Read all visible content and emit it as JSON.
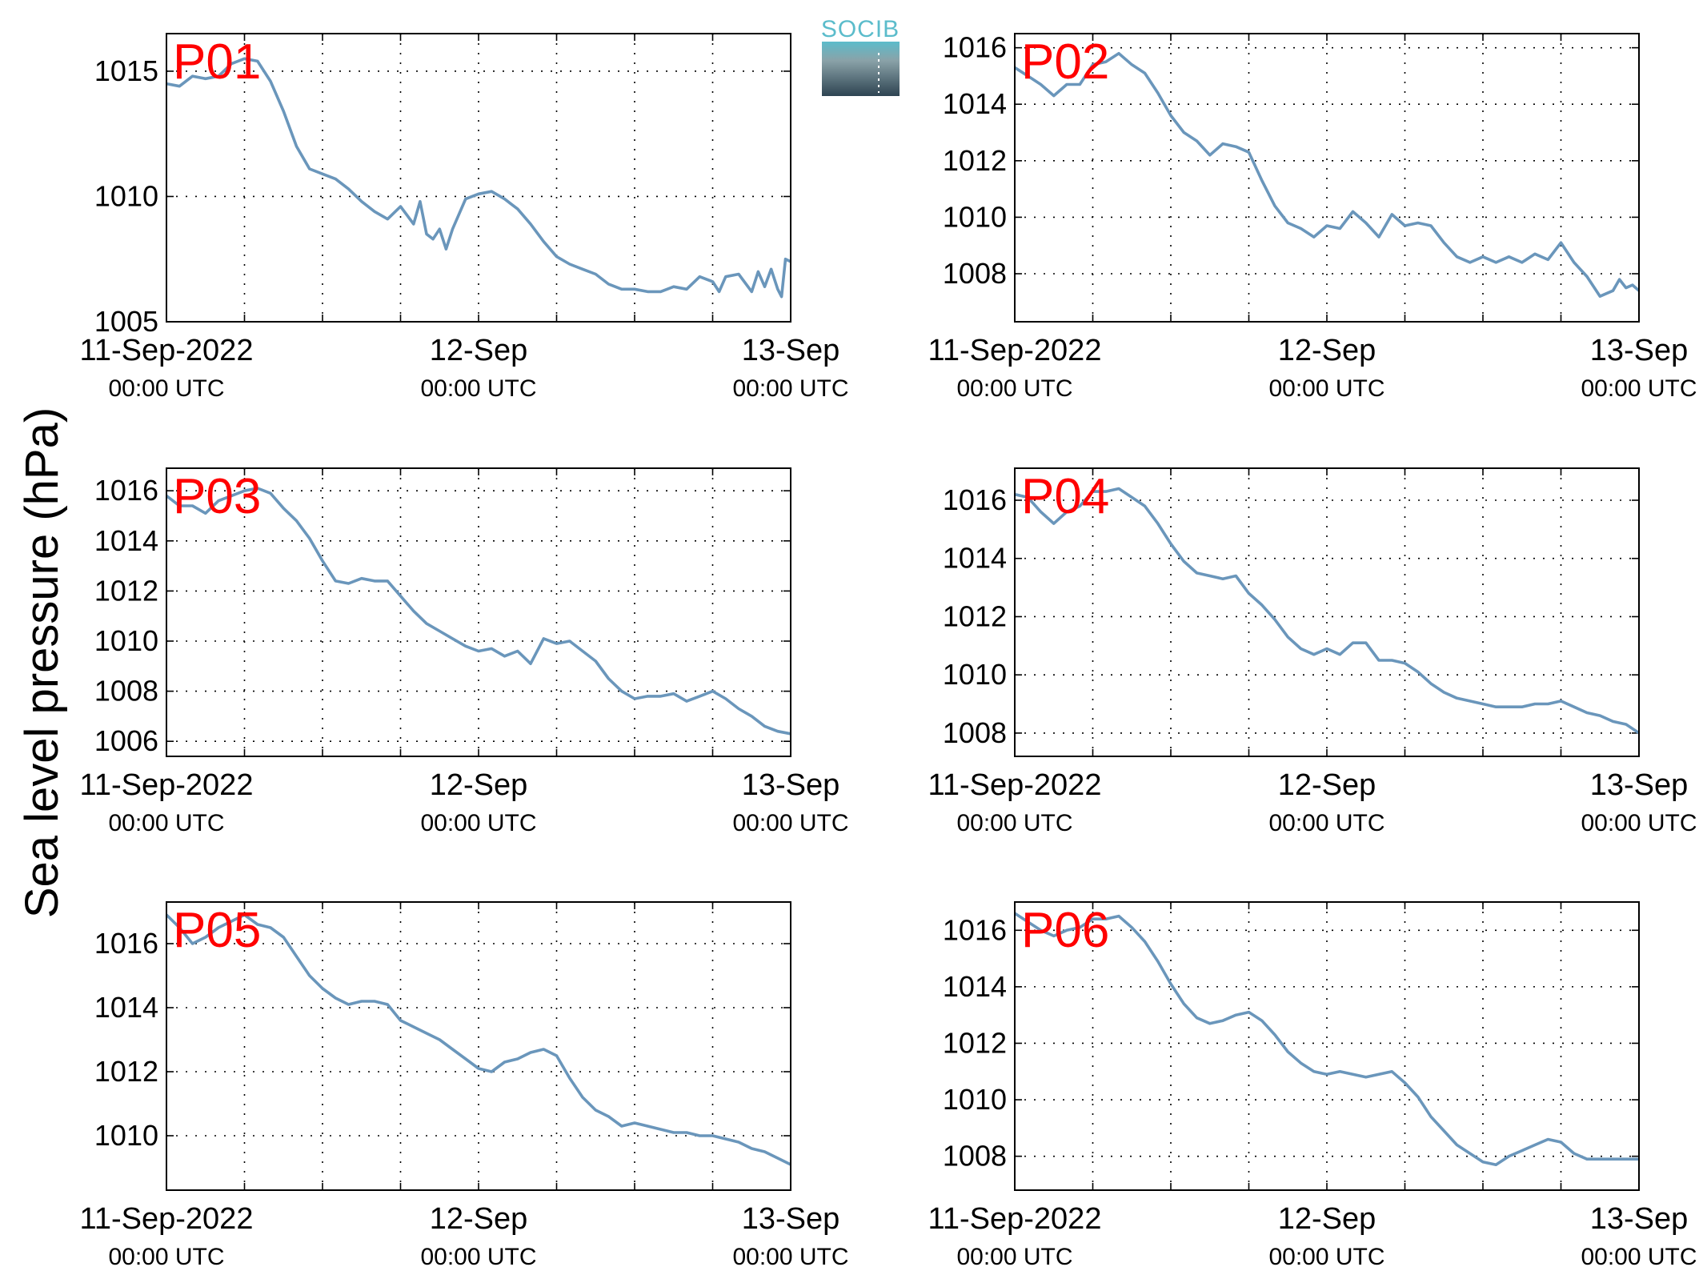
{
  "figure": {
    "ylabel": "Sea level pressure (hPa)",
    "logo_text": "SOCIB",
    "colors": {
      "series": "#6a96bb",
      "panel_label": "#ff0000",
      "logo": "#5bbccb"
    }
  },
  "chart_data": [
    {
      "type": "line",
      "label": "P01",
      "ylim": [
        1005,
        1016.5
      ],
      "yticks": [
        1005,
        1010,
        1015
      ],
      "xlim": [
        0,
        48
      ],
      "grid": true,
      "xtick_labels": [
        {
          "hour": 0,
          "main": "11-Sep-2022",
          "sub": "00:00 UTC"
        },
        {
          "hour": 24,
          "main": "12-Sep",
          "sub": "00:00 UTC"
        },
        {
          "hour": 48,
          "main": "13-Sep",
          "sub": "00:00 UTC"
        }
      ],
      "series": [
        {
          "x": [
            0,
            1,
            2,
            3,
            4,
            5,
            6,
            7,
            8,
            9,
            10,
            11,
            12,
            13,
            14,
            15,
            16,
            17,
            18,
            19,
            19.5,
            20,
            20.5,
            21,
            21.5,
            22,
            23,
            24,
            25,
            26,
            27,
            28,
            29,
            30,
            31,
            32,
            33,
            34,
            35,
            36,
            37,
            38,
            39,
            40,
            41,
            42,
            42.5,
            43,
            44,
            45,
            45.5,
            46,
            46.5,
            47,
            47.3,
            47.6,
            48
          ],
          "y": [
            1014.5,
            1014.4,
            1014.8,
            1014.7,
            1014.8,
            1015.3,
            1015.5,
            1015.4,
            1014.6,
            1013.4,
            1012.0,
            1011.1,
            1010.9,
            1010.7,
            1010.3,
            1009.8,
            1009.4,
            1009.1,
            1009.6,
            1008.9,
            1009.8,
            1008.5,
            1008.3,
            1008.7,
            1007.9,
            1008.7,
            1009.9,
            1010.1,
            1010.2,
            1009.9,
            1009.5,
            1008.9,
            1008.2,
            1007.6,
            1007.3,
            1007.1,
            1006.9,
            1006.5,
            1006.3,
            1006.3,
            1006.2,
            1006.2,
            1006.4,
            1006.3,
            1006.8,
            1006.6,
            1006.2,
            1006.8,
            1006.9,
            1006.2,
            1007.0,
            1006.4,
            1007.1,
            1006.3,
            1006.0,
            1007.5,
            1007.4
          ]
        }
      ]
    },
    {
      "type": "line",
      "label": "P02",
      "ylim": [
        1006.3,
        1016.5
      ],
      "yticks": [
        1008,
        1010,
        1012,
        1014,
        1016
      ],
      "xlim": [
        0,
        48
      ],
      "grid": true,
      "xtick_labels": [
        {
          "hour": 0,
          "main": "11-Sep-2022",
          "sub": "00:00 UTC"
        },
        {
          "hour": 24,
          "main": "12-Sep",
          "sub": "00:00 UTC"
        },
        {
          "hour": 48,
          "main": "13-Sep",
          "sub": "00:00 UTC"
        }
      ],
      "series": [
        {
          "x": [
            0,
            1,
            2,
            3,
            4,
            5,
            6,
            7,
            8,
            9,
            10,
            11,
            12,
            13,
            14,
            15,
            16,
            17,
            18,
            19,
            20,
            21,
            22,
            23,
            24,
            25,
            26,
            27,
            28,
            29,
            30,
            31,
            32,
            33,
            34,
            35,
            36,
            37,
            38,
            39,
            40,
            41,
            42,
            43,
            44,
            45,
            46,
            46.5,
            47,
            47.5,
            48
          ],
          "y": [
            1015.3,
            1015.0,
            1014.7,
            1014.3,
            1014.7,
            1014.7,
            1015.4,
            1015.5,
            1015.8,
            1015.4,
            1015.1,
            1014.4,
            1013.6,
            1013.0,
            1012.7,
            1012.2,
            1012.6,
            1012.5,
            1012.3,
            1011.3,
            1010.4,
            1009.8,
            1009.6,
            1009.3,
            1009.7,
            1009.6,
            1010.2,
            1009.8,
            1009.3,
            1010.1,
            1009.7,
            1009.8,
            1009.7,
            1009.1,
            1008.6,
            1008.4,
            1008.6,
            1008.4,
            1008.6,
            1008.4,
            1008.7,
            1008.5,
            1009.1,
            1008.4,
            1007.9,
            1007.2,
            1007.4,
            1007.8,
            1007.5,
            1007.6,
            1007.4
          ]
        }
      ]
    },
    {
      "type": "line",
      "label": "P03",
      "ylim": [
        1005.4,
        1016.9
      ],
      "yticks": [
        1006,
        1008,
        1010,
        1012,
        1014,
        1016
      ],
      "xlim": [
        0,
        48
      ],
      "grid": true,
      "xtick_labels": [
        {
          "hour": 0,
          "main": "11-Sep-2022",
          "sub": "00:00 UTC"
        },
        {
          "hour": 24,
          "main": "12-Sep",
          "sub": "00:00 UTC"
        },
        {
          "hour": 48,
          "main": "13-Sep",
          "sub": "00:00 UTC"
        }
      ],
      "series": [
        {
          "x": [
            0,
            1,
            2,
            3,
            4,
            5,
            6,
            7,
            8,
            9,
            10,
            11,
            12,
            13,
            14,
            15,
            16,
            17,
            18,
            19,
            20,
            21,
            22,
            23,
            24,
            25,
            26,
            27,
            28,
            29,
            30,
            31,
            32,
            33,
            34,
            35,
            36,
            37,
            38,
            39,
            40,
            41,
            42,
            43,
            44,
            45,
            46,
            47,
            48
          ],
          "y": [
            1015.8,
            1015.4,
            1015.4,
            1015.1,
            1015.6,
            1015.8,
            1016.0,
            1016.1,
            1015.9,
            1015.3,
            1014.8,
            1014.1,
            1013.2,
            1012.4,
            1012.3,
            1012.5,
            1012.4,
            1012.4,
            1011.8,
            1011.2,
            1010.7,
            1010.4,
            1010.1,
            1009.8,
            1009.6,
            1009.7,
            1009.4,
            1009.6,
            1009.1,
            1010.1,
            1009.9,
            1010.0,
            1009.6,
            1009.2,
            1008.5,
            1008.0,
            1007.7,
            1007.8,
            1007.8,
            1007.9,
            1007.6,
            1007.8,
            1008.0,
            1007.7,
            1007.3,
            1007.0,
            1006.6,
            1006.4,
            1006.3
          ]
        }
      ]
    },
    {
      "type": "line",
      "label": "P04",
      "ylim": [
        1007.2,
        1017.1
      ],
      "yticks": [
        1008,
        1010,
        1012,
        1014,
        1016
      ],
      "xlim": [
        0,
        48
      ],
      "grid": true,
      "xtick_labels": [
        {
          "hour": 0,
          "main": "11-Sep-2022",
          "sub": "00:00 UTC"
        },
        {
          "hour": 24,
          "main": "12-Sep",
          "sub": "00:00 UTC"
        },
        {
          "hour": 48,
          "main": "13-Sep",
          "sub": "00:00 UTC"
        }
      ],
      "series": [
        {
          "x": [
            0,
            1,
            2,
            3,
            4,
            5,
            6,
            7,
            8,
            9,
            10,
            11,
            12,
            13,
            14,
            15,
            16,
            17,
            18,
            19,
            20,
            21,
            22,
            23,
            24,
            25,
            26,
            27,
            28,
            29,
            30,
            31,
            32,
            33,
            34,
            35,
            36,
            37,
            38,
            39,
            40,
            41,
            42,
            43,
            44,
            45,
            46,
            47,
            48
          ],
          "y": [
            1016.2,
            1016.1,
            1015.6,
            1015.2,
            1015.6,
            1015.8,
            1016.3,
            1016.3,
            1016.4,
            1016.1,
            1015.8,
            1015.2,
            1014.5,
            1013.9,
            1013.5,
            1013.4,
            1013.3,
            1013.4,
            1012.8,
            1012.4,
            1011.9,
            1011.3,
            1010.9,
            1010.7,
            1010.9,
            1010.7,
            1011.1,
            1011.1,
            1010.5,
            1010.5,
            1010.4,
            1010.1,
            1009.7,
            1009.4,
            1009.2,
            1009.1,
            1009.0,
            1008.9,
            1008.9,
            1008.9,
            1009.0,
            1009.0,
            1009.1,
            1008.9,
            1008.7,
            1008.6,
            1008.4,
            1008.3,
            1008.0
          ]
        }
      ]
    },
    {
      "type": "line",
      "label": "P05",
      "ylim": [
        1008.3,
        1017.3
      ],
      "yticks": [
        1010,
        1012,
        1014,
        1016
      ],
      "xlim": [
        0,
        48
      ],
      "grid": true,
      "xtick_labels": [
        {
          "hour": 0,
          "main": "11-Sep-2022",
          "sub": "00:00 UTC"
        },
        {
          "hour": 24,
          "main": "12-Sep",
          "sub": "00:00 UTC"
        },
        {
          "hour": 48,
          "main": "13-Sep",
          "sub": "00:00 UTC"
        }
      ],
      "series": [
        {
          "x": [
            0,
            1,
            2,
            3,
            4,
            5,
            6,
            7,
            8,
            9,
            10,
            11,
            12,
            13,
            14,
            15,
            16,
            17,
            18,
            19,
            20,
            21,
            22,
            23,
            24,
            25,
            26,
            27,
            28,
            29,
            30,
            31,
            32,
            33,
            34,
            35,
            36,
            37,
            38,
            39,
            40,
            41,
            42,
            43,
            44,
            45,
            46,
            47,
            48
          ],
          "y": [
            1016.9,
            1016.5,
            1016.0,
            1016.2,
            1016.5,
            1016.7,
            1016.9,
            1016.6,
            1016.5,
            1016.2,
            1015.6,
            1015.0,
            1014.6,
            1014.3,
            1014.1,
            1014.2,
            1014.2,
            1014.1,
            1013.6,
            1013.4,
            1013.2,
            1013.0,
            1012.7,
            1012.4,
            1012.1,
            1012.0,
            1012.3,
            1012.4,
            1012.6,
            1012.7,
            1012.5,
            1011.8,
            1011.2,
            1010.8,
            1010.6,
            1010.3,
            1010.4,
            1010.3,
            1010.2,
            1010.1,
            1010.1,
            1010.0,
            1010.0,
            1009.9,
            1009.8,
            1009.6,
            1009.5,
            1009.3,
            1009.1
          ]
        }
      ]
    },
    {
      "type": "line",
      "label": "P06",
      "ylim": [
        1006.8,
        1017.0
      ],
      "yticks": [
        1008,
        1010,
        1012,
        1014,
        1016
      ],
      "xlim": [
        0,
        48
      ],
      "grid": true,
      "xtick_labels": [
        {
          "hour": 0,
          "main": "11-Sep-2022",
          "sub": "00:00 UTC"
        },
        {
          "hour": 24,
          "main": "12-Sep",
          "sub": "00:00 UTC"
        },
        {
          "hour": 48,
          "main": "13-Sep",
          "sub": "00:00 UTC"
        }
      ],
      "series": [
        {
          "x": [
            0,
            1,
            2,
            3,
            4,
            5,
            6,
            7,
            8,
            9,
            10,
            11,
            12,
            13,
            14,
            15,
            16,
            17,
            18,
            19,
            20,
            21,
            22,
            23,
            24,
            25,
            26,
            27,
            28,
            29,
            30,
            31,
            32,
            33,
            34,
            35,
            36,
            37,
            38,
            39,
            40,
            41,
            42,
            43,
            44,
            45,
            46,
            47,
            48
          ],
          "y": [
            1016.6,
            1016.3,
            1016.0,
            1015.8,
            1016.0,
            1016.1,
            1016.4,
            1016.4,
            1016.5,
            1016.1,
            1015.6,
            1014.9,
            1014.1,
            1013.4,
            1012.9,
            1012.7,
            1012.8,
            1013.0,
            1013.1,
            1012.8,
            1012.3,
            1011.7,
            1011.3,
            1011.0,
            1010.9,
            1011.0,
            1010.9,
            1010.8,
            1010.9,
            1011.0,
            1010.6,
            1010.1,
            1009.4,
            1008.9,
            1008.4,
            1008.1,
            1007.8,
            1007.7,
            1008.0,
            1008.2,
            1008.4,
            1008.6,
            1008.5,
            1008.1,
            1007.9,
            1007.9,
            1007.9,
            1007.9,
            1007.9
          ]
        }
      ]
    }
  ]
}
